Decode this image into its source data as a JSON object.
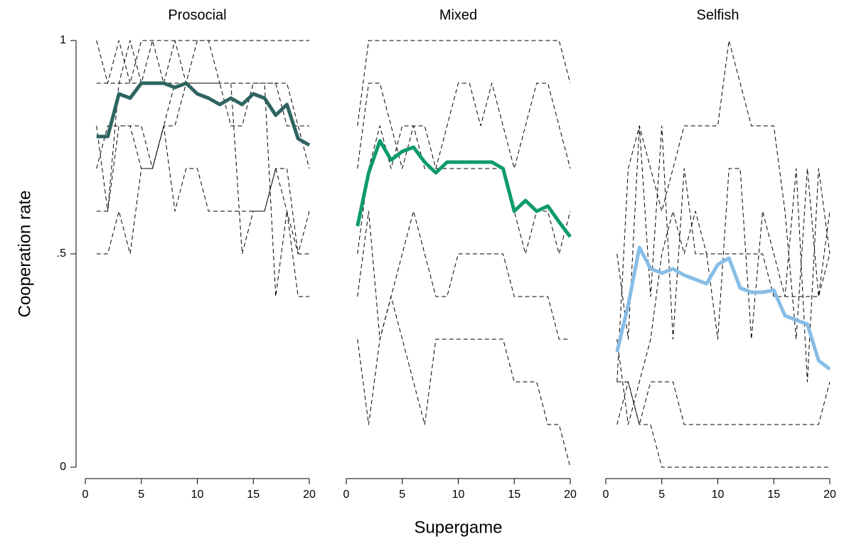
{
  "chart_data": [
    {
      "type": "line",
      "title": "Prosocial",
      "ylabel": "Cooperation rate",
      "x": [
        1,
        2,
        3,
        4,
        5,
        6,
        7,
        8,
        9,
        10,
        11,
        12,
        13,
        14,
        15,
        16,
        17,
        18,
        19,
        20
      ],
      "xlim": [
        0,
        20
      ],
      "xticks": [
        0,
        5,
        10,
        15,
        20
      ],
      "ylim": [
        0,
        1
      ],
      "yticks": [
        0,
        {
          "value": 0.5,
          "label": ".5"
        },
        1
      ],
      "series": [
        {
          "color": "#000000",
          "style": "dashed",
          "values": [
            1,
            0.9,
            1,
            0.9,
            1,
            1,
            1,
            1,
            1,
            1,
            1,
            1,
            1,
            1,
            1,
            1,
            1,
            1,
            1,
            1
          ]
        },
        {
          "color": "#000000",
          "style": "dashed",
          "values": [
            0.9,
            0.9,
            0.9,
            0.9,
            0.9,
            0.9,
            0.9,
            0.9,
            0.9,
            0.9,
            0.9,
            0.9,
            0.9,
            0.9,
            0.9,
            0.9,
            0.9,
            0.9,
            0.8,
            0.7
          ]
        },
        {
          "color": "#000000",
          "style": "dashed",
          "values": [
            0.7,
            0.8,
            0.8,
            0.8,
            0.8,
            0.7,
            0.8,
            0.8,
            0.9,
            0.9,
            0.9,
            0.9,
            0.8,
            0.8,
            0.9,
            0.9,
            0.9,
            0.8,
            0.8,
            0.8
          ]
        },
        {
          "color": "#000000",
          "style": "dashed",
          "values": [
            0.6,
            0.6,
            0.8,
            0.8,
            0.7,
            0.7,
            0.8,
            0.6,
            0.7,
            0.7,
            0.6,
            0.6,
            0.6,
            0.6,
            0.6,
            0.6,
            0.7,
            0.7,
            0.5,
            0.5
          ]
        },
        {
          "color": "#000000",
          "style": "dashed",
          "values": [
            0.5,
            0.5,
            0.6,
            0.5,
            0.7,
            0.7,
            0.8,
            0.9,
            0.9,
            0.9,
            0.9,
            0.9,
            0.9,
            0.9,
            0.9,
            0.9,
            0.4,
            0.6,
            0.4,
            0.4
          ]
        },
        {
          "color": "#000000",
          "style": "dashed",
          "values": [
            0.8,
            0.6,
            0.9,
            1,
            0.9,
            1,
            0.9,
            1,
            0.9,
            1,
            1,
            0.9,
            0.9,
            0.5,
            0.6,
            0.6,
            0.7,
            0.6,
            0.5,
            0.6
          ]
        },
        {
          "color": "#2e6461",
          "style": "solid",
          "values": [
            0.775,
            0.775,
            0.875,
            0.865,
            0.9,
            0.9,
            0.9,
            0.89,
            0.9,
            0.875,
            0.865,
            0.85,
            0.865,
            0.85,
            0.875,
            0.865,
            0.825,
            0.85,
            0.77,
            0.755
          ]
        }
      ]
    },
    {
      "type": "line",
      "title": "Mixed",
      "xlabel": "Supergame",
      "x": [
        1,
        2,
        3,
        4,
        5,
        6,
        7,
        8,
        9,
        10,
        11,
        12,
        13,
        14,
        15,
        16,
        17,
        18,
        19,
        20
      ],
      "xlim": [
        0,
        20
      ],
      "xticks": [
        0,
        5,
        10,
        15,
        20
      ],
      "ylim": [
        0,
        1
      ],
      "series": [
        {
          "color": "#000000",
          "style": "dashed",
          "values": [
            0.8,
            1,
            1,
            1,
            1,
            1,
            1,
            1,
            1,
            1,
            1,
            1,
            1,
            1,
            1,
            1,
            1,
            1,
            1,
            0.9
          ]
        },
        {
          "color": "#000000",
          "style": "dashed",
          "values": [
            0.7,
            0.9,
            0.9,
            0.8,
            0.7,
            0.8,
            0.7,
            0.7,
            0.8,
            0.9,
            0.9,
            0.8,
            0.9,
            0.8,
            0.7,
            0.8,
            0.9,
            0.9,
            0.8,
            0.7
          ]
        },
        {
          "color": "#000000",
          "style": "dashed",
          "values": [
            0.5,
            0.7,
            0.8,
            0.7,
            0.8,
            0.8,
            0.8,
            0.7,
            0.7,
            0.7,
            0.7,
            0.7,
            0.7,
            0.7,
            0.6,
            0.5,
            0.6,
            0.6,
            0.5,
            0.6
          ]
        },
        {
          "color": "#000000",
          "style": "dashed",
          "values": [
            0.4,
            0.6,
            0.3,
            0.4,
            0.5,
            0.6,
            0.5,
            0.4,
            0.4,
            0.5,
            0.5,
            0.5,
            0.5,
            0.5,
            0.4,
            0.4,
            0.4,
            0.4,
            0.3,
            0.3
          ]
        },
        {
          "color": "#000000",
          "style": "dashed",
          "values": [
            0.3,
            0.1,
            0.3,
            0.4,
            0.3,
            0.2,
            0.1,
            0.3,
            0.3,
            0.3,
            0.3,
            0.3,
            0.3,
            0.3,
            0.2,
            0.2,
            0.2,
            0.1,
            0.1,
            0
          ]
        },
        {
          "color": "#0c9a6e",
          "style": "solid",
          "values": [
            0.565,
            0.69,
            0.765,
            0.72,
            0.74,
            0.75,
            0.715,
            0.69,
            0.715,
            0.715,
            0.715,
            0.715,
            0.715,
            0.7,
            0.6,
            0.625,
            0.6,
            0.612,
            0.575,
            0.54
          ]
        }
      ]
    },
    {
      "type": "line",
      "title": "Selfish",
      "x": [
        1,
        2,
        3,
        4,
        5,
        6,
        7,
        8,
        9,
        10,
        11,
        12,
        13,
        14,
        15,
        16,
        17,
        18,
        19,
        20
      ],
      "xlim": [
        0,
        20
      ],
      "xticks": [
        0,
        5,
        10,
        15,
        20
      ],
      "ylim": [
        0,
        1
      ],
      "series": [
        {
          "color": "#000000",
          "style": "dashed",
          "values": [
            0.2,
            0.7,
            0.8,
            0.7,
            0.6,
            0.7,
            0.8,
            0.8,
            0.8,
            0.8,
            1,
            0.9,
            0.8,
            0.8,
            0.8,
            0.6,
            0.3,
            0.7,
            0.4,
            0.6
          ]
        },
        {
          "color": "#000000",
          "style": "dashed",
          "values": [
            0.5,
            0.3,
            0.8,
            0.4,
            0.8,
            0.3,
            0.7,
            0.5,
            0.5,
            0.3,
            0.7,
            0.7,
            0.3,
            0.6,
            0.5,
            0.4,
            0.7,
            0.2,
            0.7,
            0.5
          ]
        },
        {
          "color": "#000000",
          "style": "dashed",
          "values": [
            0.3,
            0.1,
            0.2,
            0.3,
            0.5,
            0.6,
            0.5,
            0.6,
            0.5,
            0.5,
            0.5,
            0.5,
            0.5,
            0.5,
            0.4,
            0.4,
            0.4,
            0.4,
            0.4,
            0.5
          ]
        },
        {
          "color": "#000000",
          "style": "dashed",
          "values": [
            0.2,
            0.2,
            0.1,
            0.2,
            0.2,
            0.2,
            0.1,
            0.1,
            0.1,
            0.1,
            0.1,
            0.1,
            0.1,
            0.1,
            0.1,
            0.1,
            0.1,
            0.1,
            0.1,
            0.2
          ]
        },
        {
          "color": "#000000",
          "style": "dashed",
          "values": [
            0.1,
            0.2,
            0.1,
            0.1,
            0,
            0,
            0,
            0,
            0,
            0,
            0,
            0,
            0,
            0,
            0,
            0,
            0,
            0,
            0,
            0
          ]
        },
        {
          "color": "#87bde6",
          "style": "solid",
          "values": [
            0.27,
            0.38,
            0.515,
            0.465,
            0.455,
            0.465,
            0.45,
            0.44,
            0.43,
            0.475,
            0.49,
            0.42,
            0.41,
            0.41,
            0.415,
            0.355,
            0.345,
            0.335,
            0.25,
            0.23
          ]
        }
      ]
    }
  ]
}
